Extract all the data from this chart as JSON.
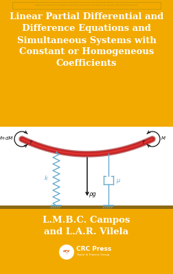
{
  "bg_gold": "#F2AA00",
  "bg_white": "#FFFFFF",
  "series_text": "Mathematics and Physics for Science and Technology",
  "series_color": "#C8960A",
  "title_lines": [
    "Linear Partial Differential and",
    "Difference Equations and",
    "Simultaneous Systems with",
    "Constant or Homogeneous",
    "Coefficients"
  ],
  "title_color": "#FFFFFF",
  "author_line1": "L.M.B.C. Campos",
  "author_line2": "and L.A.R. Vilela",
  "author_color": "#FFFFFF",
  "diagram_bg": "#FFFFFF",
  "rope_color": "#AA1111",
  "spring_color": "#66AACC",
  "damper_color": "#66AACC",
  "arrow_color": "#111111",
  "label_color": "#111111",
  "stripe_color": "#8B6914",
  "crc_orange": "#E05000"
}
